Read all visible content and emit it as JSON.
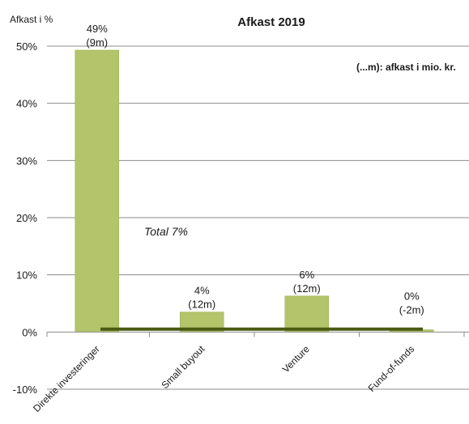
{
  "chart_data": {
    "type": "bar",
    "title": "Afkast 2019",
    "ylabel": "Afkast i %",
    "note": "(...m): afkast i mio. kr.",
    "annotation": "Total 7%",
    "categories": [
      "Direkte investeringer",
      "Small buyout",
      "Venture",
      "Fund-of-funds"
    ],
    "values": [
      49.3,
      3.5,
      6.3,
      0.4
    ],
    "value_labels": [
      "49%",
      "4%",
      "6%",
      "0%"
    ],
    "amount_labels": [
      "(9m)",
      "(12m)",
      "(12m)",
      "(-2m)"
    ],
    "y_ticks": [
      "50%",
      "40%",
      "30%",
      "20%",
      "10%",
      "0%",
      "-10%"
    ],
    "ylim": [
      -10,
      50
    ],
    "grid": true,
    "colors": {
      "bar": "#b3c46a",
      "bar_stroke": "#9bb04f",
      "total_line": "#4b5a12",
      "grid": "#8c8c8c"
    }
  }
}
